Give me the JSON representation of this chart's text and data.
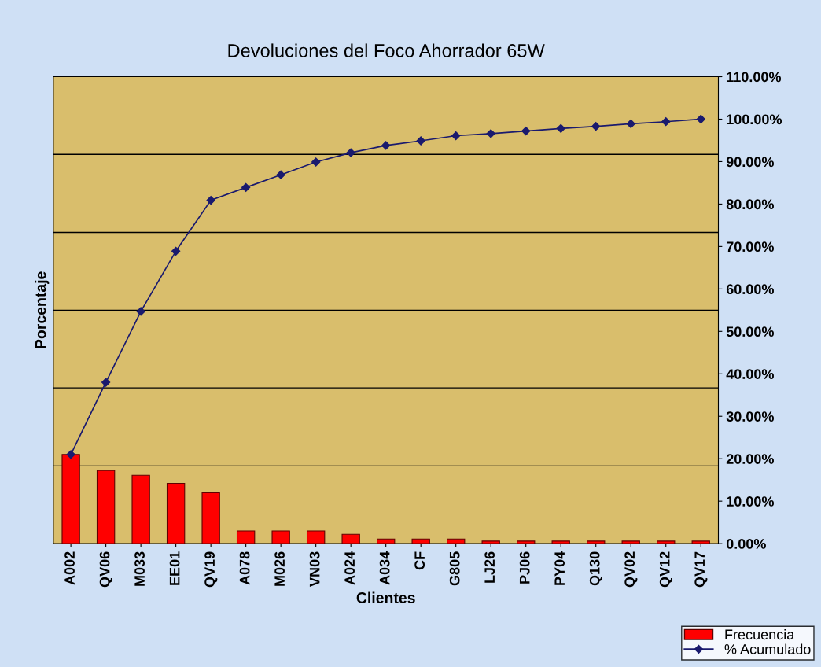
{
  "chart_data": {
    "type": "bar",
    "title": "Devoluciones del Foco Ahorrador 65W",
    "xlabel": "Clientes",
    "ylabel": "Porcentaje",
    "categories": [
      "A002",
      "QV06",
      "M033",
      "EE01",
      "QV19",
      "A078",
      "M026",
      "VN03",
      "A024",
      "A034",
      "CF",
      "G805",
      "LJ26",
      "PJ06",
      "PY04",
      "Q130",
      "QV02",
      "QV12",
      "QV17"
    ],
    "series": [
      {
        "name": "Frecuencia",
        "color": "#ff0000",
        "values": [
          21.0,
          17.2,
          16.1,
          14.2,
          12.0,
          3.0,
          3.0,
          3.0,
          2.2,
          1.1,
          1.1,
          1.1,
          0.6,
          0.6,
          0.6,
          0.6,
          0.6,
          0.6,
          0.6
        ]
      },
      {
        "name": "% Acumulado",
        "type": "line",
        "color": "#1a1a6e",
        "marker": "diamond",
        "values": [
          21.0,
          38.0,
          54.7,
          68.9,
          80.9,
          83.9,
          86.9,
          89.9,
          92.1,
          93.8,
          94.9,
          96.1,
          96.6,
          97.2,
          97.8,
          98.3,
          98.9,
          99.4,
          100.0
        ]
      }
    ],
    "ylim": [
      0,
      110
    ],
    "yticks": [
      {
        "value": 0,
        "label": "0.00%"
      },
      {
        "value": 10,
        "label": "10.00%"
      },
      {
        "value": 20,
        "label": "20.00%"
      },
      {
        "value": 30,
        "label": "30.00%"
      },
      {
        "value": 40,
        "label": "40.00%"
      },
      {
        "value": 50,
        "label": "50.00%"
      },
      {
        "value": 60,
        "label": "60.00%"
      },
      {
        "value": 70,
        "label": "70.00%"
      },
      {
        "value": 80,
        "label": "80.00%"
      },
      {
        "value": 90,
        "label": "90.00%"
      },
      {
        "value": 100,
        "label": "100.00%"
      },
      {
        "value": 110,
        "label": "110.00%"
      }
    ],
    "ref_lines": [
      {
        "axis": "y",
        "value": 18.3,
        "color": "#000000"
      },
      {
        "axis": "y",
        "value": 36.7,
        "color": "#000000"
      },
      {
        "axis": "y",
        "value": 55,
        "color": "#000000"
      },
      {
        "axis": "y",
        "value": 73.3,
        "color": "#000000"
      },
      {
        "axis": "y",
        "value": 91.7,
        "color": "#000000"
      }
    ],
    "legend": "bottom right"
  }
}
